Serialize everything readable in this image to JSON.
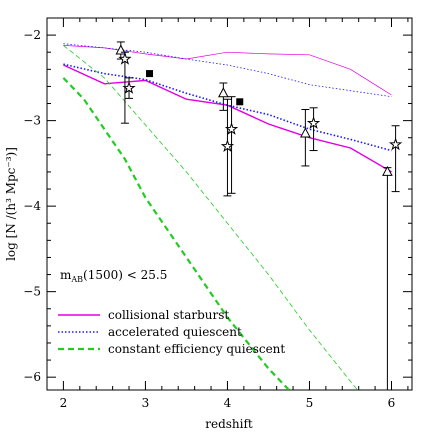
{
  "chart_data": {
    "type": "line",
    "xlabel": "redshift",
    "ylabel": "log [N /(h³ Mpc⁻³)]",
    "xlim": [
      1.8,
      6.25
    ],
    "ylim": [
      -6.15,
      -1.8
    ],
    "xticks": [
      2,
      3,
      4,
      5,
      6
    ],
    "yticks": [
      -2,
      -3,
      -4,
      -5,
      -6
    ],
    "annotation": {
      "main": "m",
      "sub": "AB",
      "rest": "(1500) < 25.5"
    },
    "series": [
      {
        "name": "collisional starburst",
        "color": "#e000e0",
        "style": "solid",
        "width": 1.4,
        "x": [
          2.0,
          2.5,
          3.0,
          3.5,
          4.0,
          4.5,
          5.0,
          5.5,
          6.0
        ],
        "y": [
          -2.35,
          -2.57,
          -2.53,
          -2.75,
          -2.82,
          -3.04,
          -3.2,
          -3.32,
          -3.6
        ]
      },
      {
        "name": "accelerated quiescent",
        "color": "#1a1aff",
        "style": "dotted",
        "width": 1.6,
        "x": [
          2.0,
          2.5,
          3.0,
          3.5,
          4.0,
          4.5,
          5.0,
          5.5,
          6.0
        ],
        "y": [
          -2.34,
          -2.45,
          -2.52,
          -2.68,
          -2.82,
          -2.93,
          -3.1,
          -3.22,
          -3.35
        ]
      },
      {
        "name": "constant efficiency quiescent",
        "color": "#22cc22",
        "style": "dashed",
        "width": 2.2,
        "x": [
          2.0,
          2.25,
          2.5,
          2.75,
          3.0,
          3.5,
          4.0,
          4.5,
          4.9
        ],
        "y": [
          -2.5,
          -2.75,
          -3.1,
          -3.45,
          -3.9,
          -4.6,
          -5.3,
          -5.9,
          -6.3
        ]
      },
      {
        "name": "",
        "color": "#22cc22",
        "style": "dashed",
        "width": 0.8,
        "x": [
          2.0,
          2.5,
          3.0,
          3.5,
          4.0,
          4.5,
          5.0,
          5.5,
          5.8
        ],
        "y": [
          -2.12,
          -2.5,
          -3.05,
          -3.6,
          -4.2,
          -4.8,
          -5.45,
          -6.05,
          -6.4
        ]
      },
      {
        "name": "",
        "color": "#e000e0",
        "style": "solid",
        "width": 0.7,
        "x": [
          2.0,
          2.5,
          3.0,
          3.5,
          4.0,
          4.5,
          5.0,
          5.5,
          6.0
        ],
        "y": [
          -2.12,
          -2.15,
          -2.22,
          -2.28,
          -2.2,
          -2.22,
          -2.23,
          -2.4,
          -2.7
        ]
      },
      {
        "name": "",
        "color": "#1a1aff",
        "style": "dotted",
        "width": 0.8,
        "x": [
          2.0,
          2.5,
          3.0,
          3.5,
          4.0,
          4.5,
          5.0,
          5.5,
          6.0
        ],
        "y": [
          -2.1,
          -2.15,
          -2.2,
          -2.28,
          -2.35,
          -2.45,
          -2.58,
          -2.65,
          -2.72
        ]
      }
    ],
    "points": [
      {
        "marker": "triangle",
        "x": 2.7,
        "y": -2.18,
        "yerr_low": 0.1,
        "yerr_high": 0.1
      },
      {
        "marker": "star",
        "x": 2.75,
        "y": -2.28,
        "yerr_low": 0.75,
        "yerr_high": 0.08
      },
      {
        "marker": "star",
        "x": 2.8,
        "y": -2.62,
        "yerr_low": 0.12,
        "yerr_high": 0.12
      },
      {
        "marker": "square",
        "x": 3.05,
        "y": -2.45
      },
      {
        "marker": "triangle",
        "x": 3.95,
        "y": -2.68,
        "yerr_low": 0.2,
        "yerr_high": 0.12
      },
      {
        "marker": "star",
        "x": 4.0,
        "y": -3.3,
        "yerr_low": 0.58,
        "yerr_high": 0.55
      },
      {
        "marker": "star",
        "x": 4.05,
        "y": -3.1,
        "yerr_low": 0.75,
        "yerr_high": 0.38
      },
      {
        "marker": "square",
        "x": 4.15,
        "y": -2.78
      },
      {
        "marker": "triangle",
        "x": 4.95,
        "y": -3.15,
        "yerr_low": 0.38,
        "yerr_high": 0.28
      },
      {
        "marker": "star",
        "x": 5.05,
        "y": -3.03,
        "yerr_low": 0.32,
        "yerr_high": 0.18
      },
      {
        "marker": "triangle",
        "x": 5.95,
        "y": -3.6,
        "yerr_low": 2.6,
        "yerr_high": 0.05
      },
      {
        "marker": "star",
        "x": 6.05,
        "y": -3.28,
        "yerr_low": 0.55,
        "yerr_high": 0.22
      }
    ]
  }
}
